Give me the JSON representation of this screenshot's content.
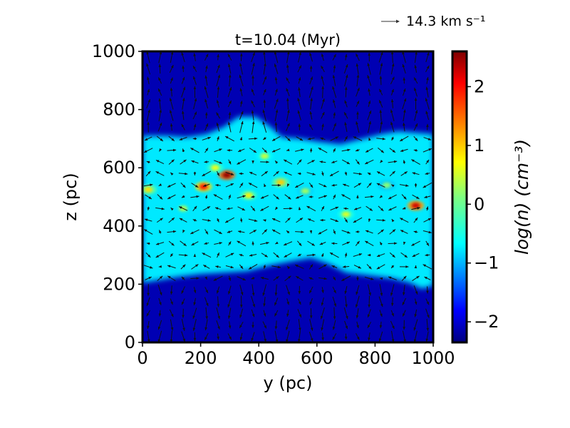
{
  "chart_data": {
    "type": "heatmap",
    "title": "t=10.04 (Myr)",
    "xlabel": "y (pc)",
    "ylabel": "z (pc)",
    "xlim": [
      0,
      1000
    ],
    "ylim": [
      0,
      1000
    ],
    "xticks": [
      "0",
      "200",
      "400",
      "600",
      "800",
      "1000"
    ],
    "yticks": [
      "0",
      "200",
      "400",
      "600",
      "800",
      "1000"
    ],
    "colorbar": {
      "label": "log(n) (cm⁻³)",
      "range": [
        -2.35,
        2.6
      ],
      "ticks": [
        "−2",
        "−1",
        "0",
        "1",
        "2"
      ],
      "tick_values": [
        -2,
        -1,
        0,
        1,
        2
      ],
      "colormap": "jet"
    },
    "quiver_key": {
      "label": "14.3 km s⁻¹"
    },
    "disk_upper_boundary": [
      {
        "y": 0,
        "z": 710
      },
      {
        "y": 80,
        "z": 710
      },
      {
        "y": 150,
        "z": 705
      },
      {
        "y": 220,
        "z": 715
      },
      {
        "y": 280,
        "z": 740
      },
      {
        "y": 330,
        "z": 775
      },
      {
        "y": 390,
        "z": 775
      },
      {
        "y": 440,
        "z": 740
      },
      {
        "y": 480,
        "z": 705
      },
      {
        "y": 540,
        "z": 700
      },
      {
        "y": 600,
        "z": 690
      },
      {
        "y": 680,
        "z": 680
      },
      {
        "y": 760,
        "z": 700
      },
      {
        "y": 820,
        "z": 715
      },
      {
        "y": 880,
        "z": 725
      },
      {
        "y": 940,
        "z": 720
      },
      {
        "y": 1000,
        "z": 715
      }
    ],
    "disk_lower_boundary": [
      {
        "y": 0,
        "z": 205
      },
      {
        "y": 60,
        "z": 215
      },
      {
        "y": 120,
        "z": 225
      },
      {
        "y": 200,
        "z": 235
      },
      {
        "y": 280,
        "z": 240
      },
      {
        "y": 360,
        "z": 245
      },
      {
        "y": 440,
        "z": 265
      },
      {
        "y": 520,
        "z": 280
      },
      {
        "y": 580,
        "z": 290
      },
      {
        "y": 640,
        "z": 270
      },
      {
        "y": 700,
        "z": 240
      },
      {
        "y": 780,
        "z": 230
      },
      {
        "y": 860,
        "z": 220
      },
      {
        "y": 920,
        "z": 205
      },
      {
        "y": 960,
        "z": 185
      },
      {
        "y": 1000,
        "z": 195
      }
    ],
    "background_log_density": -2.1,
    "disk_log_density": -0.6,
    "dense_clumps": [
      {
        "y": 210,
        "z": 535,
        "log_n": 1.9
      },
      {
        "y": 290,
        "z": 575,
        "log_n": 2.5
      },
      {
        "y": 940,
        "z": 470,
        "log_n": 2.2
      },
      {
        "y": 20,
        "z": 525,
        "log_n": 0.9
      },
      {
        "y": 475,
        "z": 550,
        "log_n": 1.0
      },
      {
        "y": 365,
        "z": 505,
        "log_n": 0.8
      },
      {
        "y": 700,
        "z": 440,
        "log_n": 0.6
      },
      {
        "y": 140,
        "z": 460,
        "log_n": 0.4
      },
      {
        "y": 420,
        "z": 640,
        "log_n": 0.5
      },
      {
        "y": 560,
        "z": 520,
        "log_n": 0.3
      },
      {
        "y": 840,
        "z": 540,
        "log_n": 0.2
      },
      {
        "y": 250,
        "z": 600,
        "log_n": 0.7
      }
    ]
  }
}
